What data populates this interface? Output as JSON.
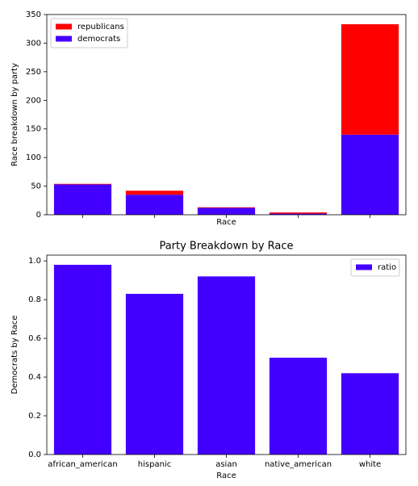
{
  "chart_data": [
    {
      "type": "stacked_bar",
      "ylabel": "Race breakdown by party",
      "xlabel": "Race",
      "categories": [
        null,
        null,
        null,
        null,
        null
      ],
      "series": [
        {
          "name": "democrats",
          "color": "#4400ff",
          "values": [
            53,
            35,
            12,
            2,
            140
          ]
        },
        {
          "name": "republicans",
          "color": "#ff0000",
          "values": [
            1,
            7,
            1,
            2,
            193
          ]
        }
      ],
      "ylim": [
        0,
        350
      ],
      "yticks": [
        0,
        50,
        100,
        150,
        200,
        250,
        300,
        350
      ],
      "legend": "upper left"
    },
    {
      "type": "bar",
      "title": "Party Breakdown by Race",
      "ylabel": "Democrats by Race",
      "xlabel": "Race",
      "categories": [
        "african_american",
        "hispanic",
        "asian",
        "native_american",
        "white"
      ],
      "series": [
        {
          "name": "ratio",
          "color": "#4400ff",
          "values": [
            0.98,
            0.83,
            0.92,
            0.5,
            0.42
          ]
        }
      ],
      "ylim": [
        0,
        1.03
      ],
      "yticks": [
        {
          "value": 0,
          "label": "0.0"
        },
        {
          "value": 0.2,
          "label": "0.2"
        },
        {
          "value": 0.4,
          "label": "0.4"
        },
        {
          "value": 0.6,
          "label": "0.6"
        },
        {
          "value": 0.8,
          "label": "0.8"
        },
        {
          "value": 1,
          "label": "1.0"
        }
      ],
      "legend": "upper right"
    }
  ]
}
